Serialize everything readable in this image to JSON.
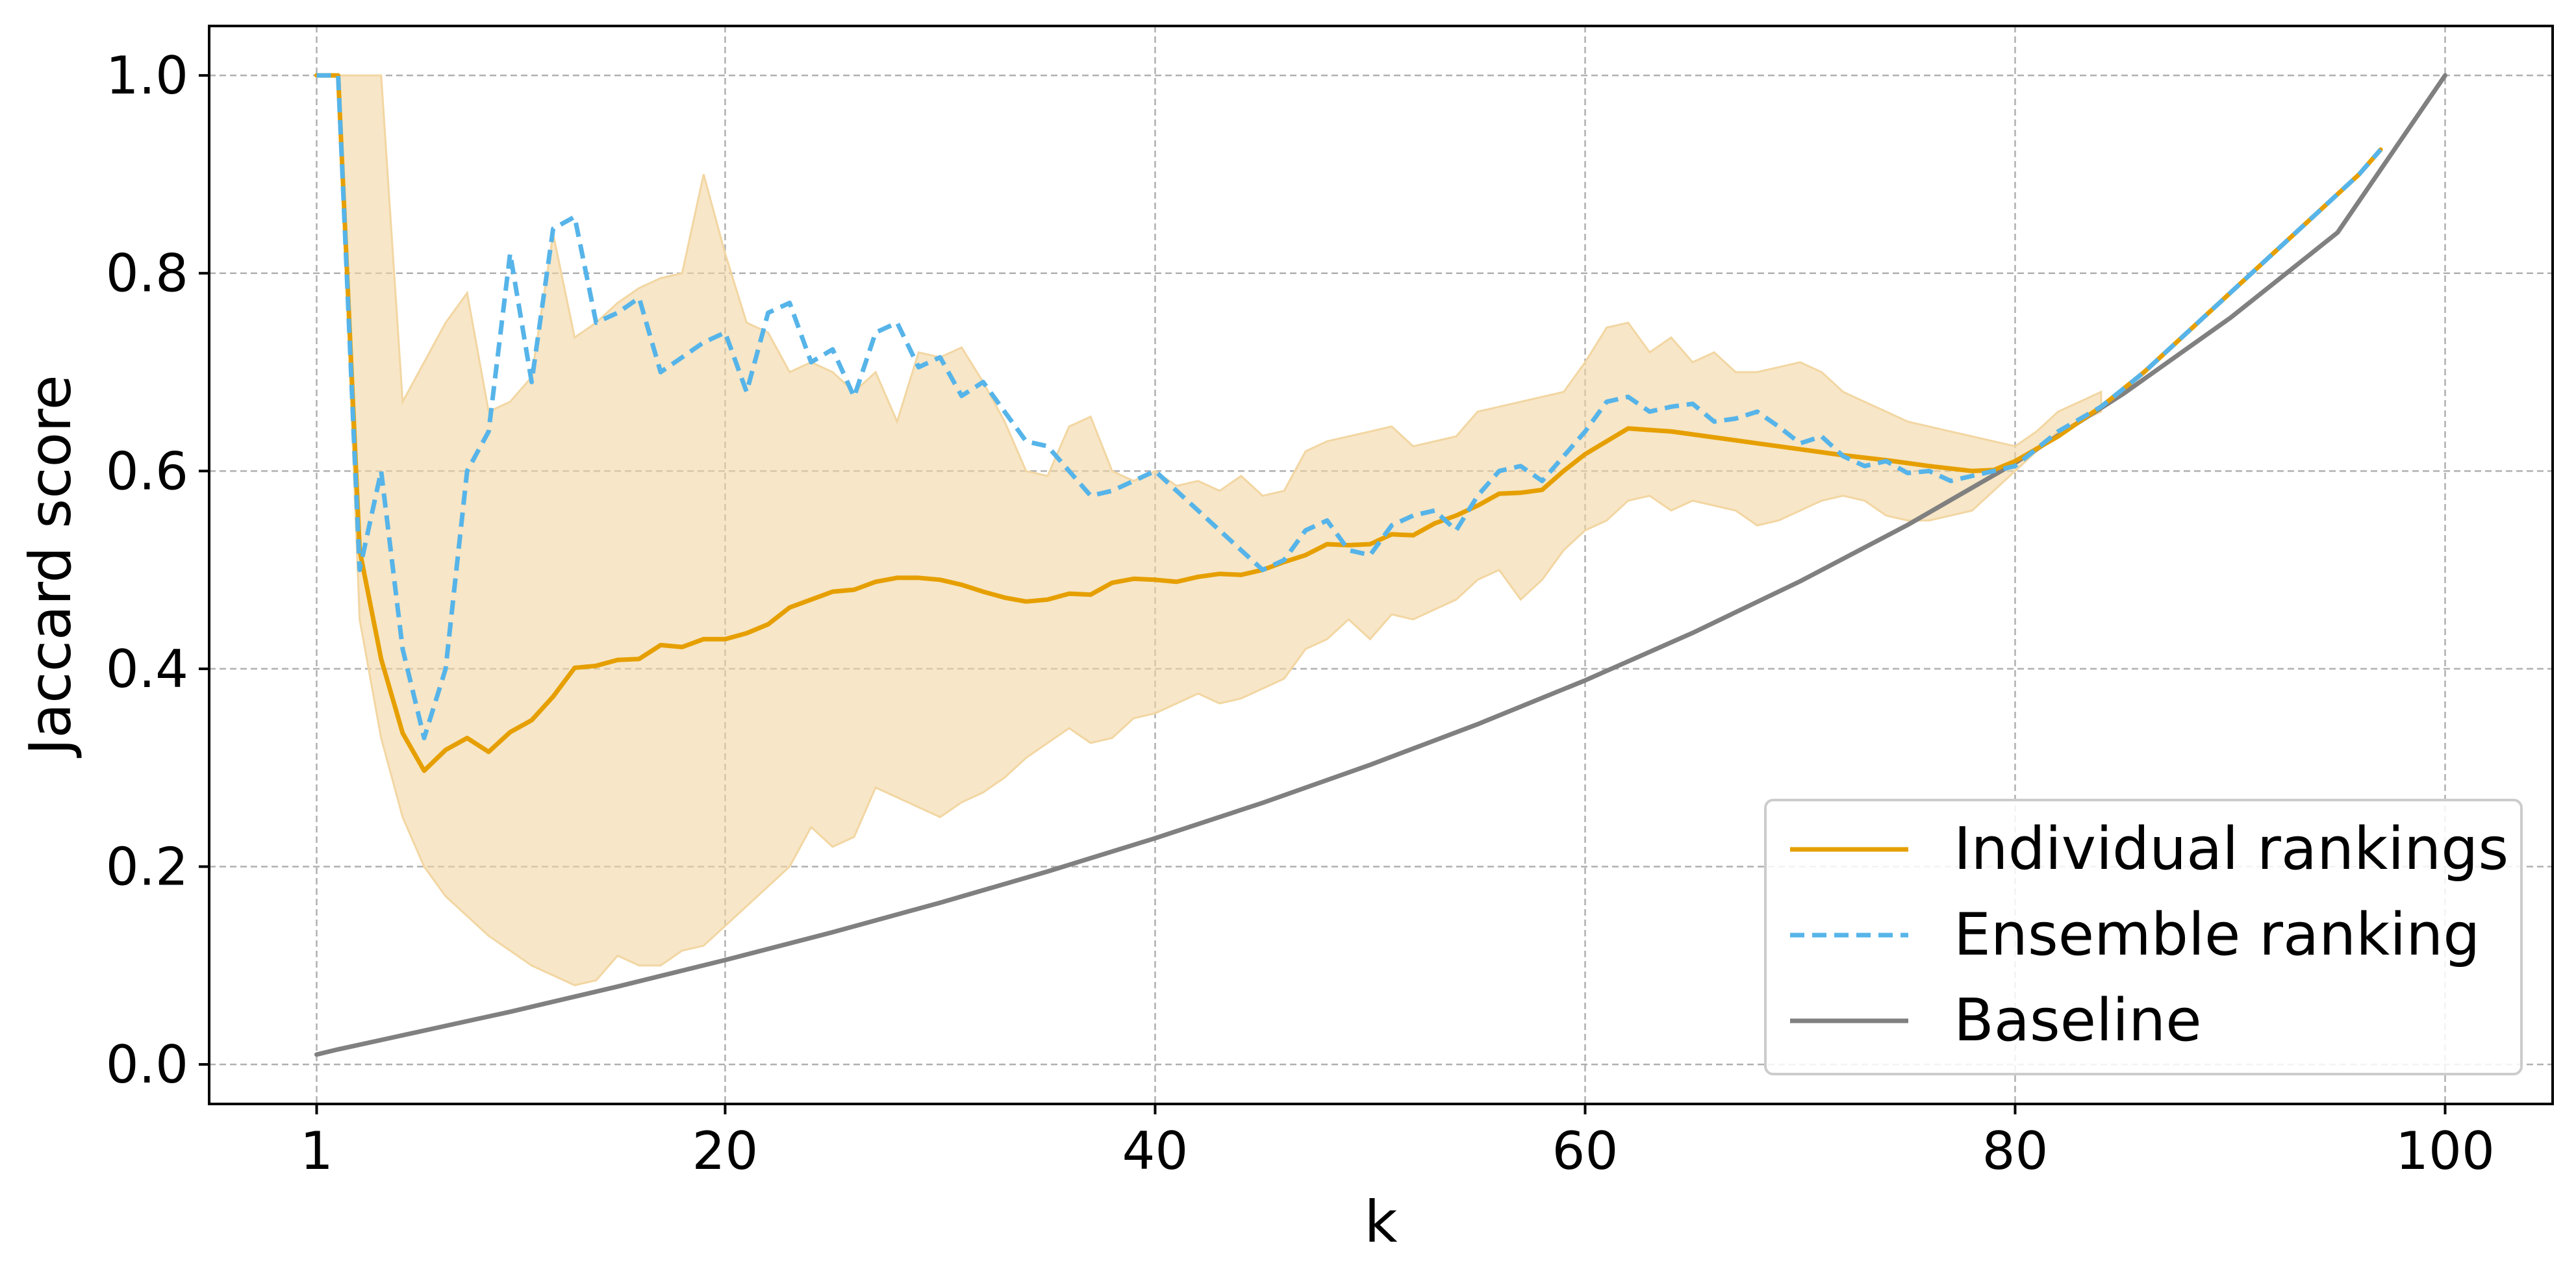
{
  "chart_data": {
    "type": "line",
    "xlabel": "k",
    "ylabel": "Jaccard score",
    "xlim": [
      -4,
      105
    ],
    "ylim": [
      -0.04,
      1.05
    ],
    "x_ticks": [
      1,
      20,
      40,
      60,
      80,
      100
    ],
    "x_tick_labels": [
      "1",
      "20",
      "40",
      "60",
      "80",
      "100"
    ],
    "y_ticks": [
      0.0,
      0.2,
      0.4,
      0.6,
      0.8,
      1.0
    ],
    "y_tick_labels": [
      "0.0",
      "0.2",
      "0.4",
      "0.6",
      "0.8",
      "1.0"
    ],
    "grid": true,
    "legend_position": "lower-right",
    "series": [
      {
        "name": "Individual rankings",
        "style": "solid",
        "color": "#E69F00",
        "x": [
          1,
          2,
          3,
          4,
          5,
          6,
          7,
          8,
          9,
          10,
          11,
          12,
          13,
          14,
          15,
          16,
          17,
          18,
          19,
          20,
          21,
          22,
          23,
          24,
          25,
          26,
          27,
          28,
          29,
          30,
          31,
          32,
          33,
          34,
          35,
          36,
          37,
          38,
          39,
          40,
          41,
          42,
          43,
          44,
          45,
          46,
          47,
          48,
          49,
          50,
          51,
          52,
          53,
          54,
          55,
          56,
          57,
          58,
          59,
          60,
          62,
          64,
          66,
          68,
          70,
          72,
          74,
          76,
          78,
          79,
          80,
          82,
          84,
          86,
          88,
          90,
          92,
          94,
          96,
          97
        ],
        "y": [
          1.0,
          1.0,
          0.52,
          0.41,
          0.335,
          0.297,
          0.318,
          0.33,
          0.316,
          0.336,
          0.348,
          0.372,
          0.401,
          0.403,
          0.409,
          0.41,
          0.424,
          0.422,
          0.43,
          0.43,
          0.436,
          0.445,
          0.462,
          0.47,
          0.478,
          0.48,
          0.488,
          0.492,
          0.492,
          0.49,
          0.485,
          0.478,
          0.472,
          0.468,
          0.47,
          0.476,
          0.475,
          0.487,
          0.491,
          0.49,
          0.488,
          0.493,
          0.496,
          0.495,
          0.5,
          0.508,
          0.515,
          0.526,
          0.525,
          0.526,
          0.536,
          0.535,
          0.547,
          0.555,
          0.565,
          0.577,
          0.578,
          0.581,
          0.6,
          0.617,
          0.643,
          0.64,
          0.634,
          0.628,
          0.622,
          0.616,
          0.611,
          0.605,
          0.6,
          0.601,
          0.61,
          0.635,
          0.665,
          0.7,
          0.74,
          0.78,
          0.82,
          0.86,
          0.9,
          0.925
        ]
      },
      {
        "name": "Ensemble ranking",
        "style": "dashed",
        "color": "#56B4E9",
        "x": [
          1,
          2,
          3,
          4,
          5,
          6,
          7,
          8,
          9,
          10,
          11,
          12,
          13,
          14,
          15,
          16,
          17,
          18,
          19,
          20,
          21,
          22,
          23,
          24,
          25,
          26,
          27,
          28,
          29,
          30,
          31,
          32,
          33,
          34,
          35,
          36,
          37,
          38,
          39,
          40,
          41,
          42,
          43,
          44,
          45,
          46,
          47,
          48,
          49,
          50,
          51,
          52,
          53,
          54,
          55,
          56,
          57,
          58,
          59,
          60,
          61,
          62,
          63,
          64,
          65,
          66,
          67,
          68,
          69,
          70,
          71,
          72,
          73,
          74,
          75,
          76,
          77,
          78,
          79,
          80,
          82,
          84,
          86,
          88,
          90,
          92,
          94,
          96,
          97
        ],
        "y": [
          1.0,
          1.0,
          0.5,
          0.6,
          0.42,
          0.33,
          0.4,
          0.6,
          0.64,
          0.82,
          0.69,
          0.845,
          0.857,
          0.75,
          0.76,
          0.775,
          0.7,
          0.715,
          0.73,
          0.74,
          0.68,
          0.76,
          0.77,
          0.71,
          0.723,
          0.675,
          0.74,
          0.75,
          0.705,
          0.715,
          0.676,
          0.69,
          0.66,
          0.63,
          0.625,
          0.6,
          0.575,
          0.58,
          0.59,
          0.6,
          0.58,
          0.56,
          0.54,
          0.52,
          0.5,
          0.51,
          0.54,
          0.55,
          0.52,
          0.515,
          0.545,
          0.555,
          0.56,
          0.54,
          0.575,
          0.6,
          0.605,
          0.59,
          0.615,
          0.64,
          0.67,
          0.675,
          0.66,
          0.665,
          0.668,
          0.65,
          0.653,
          0.66,
          0.645,
          0.628,
          0.635,
          0.615,
          0.605,
          0.61,
          0.598,
          0.6,
          0.59,
          0.595,
          0.6,
          0.605,
          0.64,
          0.665,
          0.7,
          0.74,
          0.78,
          0.82,
          0.86,
          0.9,
          0.925
        ]
      },
      {
        "name": "Baseline",
        "style": "solid",
        "color": "#808080",
        "x": [
          1,
          2,
          4,
          6,
          8,
          10,
          15,
          20,
          25,
          30,
          35,
          40,
          45,
          50,
          55,
          60,
          65,
          70,
          75,
          80,
          85,
          90,
          95,
          100
        ],
        "y": [
          0.01,
          0.0152,
          0.0247,
          0.0342,
          0.0437,
          0.0532,
          0.0787,
          0.1055,
          0.1337,
          0.1635,
          0.1951,
          0.2287,
          0.2645,
          0.3029,
          0.344,
          0.3883,
          0.4363,
          0.4885,
          0.5455,
          0.6082,
          0.6776,
          0.7547,
          0.8412,
          1.0
        ]
      }
    ],
    "band": {
      "series": "Individual rankings",
      "color": "#F2D6A2",
      "x": [
        1,
        2,
        3,
        4,
        5,
        6,
        7,
        8,
        9,
        10,
        11,
        12,
        13,
        14,
        15,
        16,
        17,
        18,
        19,
        20,
        21,
        22,
        23,
        24,
        25,
        26,
        27,
        28,
        29,
        30,
        31,
        32,
        33,
        34,
        35,
        36,
        37,
        38,
        39,
        40,
        41,
        42,
        43,
        44,
        45,
        46,
        47,
        48,
        49,
        50,
        51,
        52,
        53,
        54,
        55,
        56,
        57,
        58,
        59,
        60,
        61,
        62,
        63,
        64,
        65,
        66,
        67,
        68,
        69,
        70,
        71,
        72,
        73,
        74,
        75,
        76,
        77,
        78,
        79,
        80,
        81,
        82,
        83,
        84
      ],
      "upper": [
        1.0,
        1.0,
        1.0,
        1.0,
        0.67,
        0.71,
        0.75,
        0.78,
        0.66,
        0.67,
        0.695,
        0.84,
        0.735,
        0.75,
        0.77,
        0.785,
        0.795,
        0.8,
        0.9,
        0.82,
        0.75,
        0.74,
        0.7,
        0.71,
        0.7,
        0.68,
        0.7,
        0.65,
        0.72,
        0.715,
        0.725,
        0.69,
        0.65,
        0.6,
        0.595,
        0.645,
        0.655,
        0.6,
        0.59,
        0.6,
        0.585,
        0.59,
        0.58,
        0.595,
        0.575,
        0.58,
        0.62,
        0.63,
        0.635,
        0.64,
        0.645,
        0.625,
        0.63,
        0.635,
        0.66,
        0.665,
        0.67,
        0.675,
        0.68,
        0.71,
        0.745,
        0.75,
        0.72,
        0.735,
        0.71,
        0.72,
        0.7,
        0.7,
        0.705,
        0.71,
        0.7,
        0.68,
        0.67,
        0.66,
        0.65,
        0.645,
        0.64,
        0.635,
        0.63,
        0.625,
        0.64,
        0.66,
        0.67,
        0.68
      ],
      "lower": [
        1.0,
        1.0,
        0.45,
        0.33,
        0.25,
        0.2,
        0.17,
        0.15,
        0.13,
        0.115,
        0.1,
        0.09,
        0.08,
        0.085,
        0.11,
        0.1,
        0.1,
        0.115,
        0.12,
        0.14,
        0.16,
        0.18,
        0.2,
        0.24,
        0.22,
        0.23,
        0.28,
        0.27,
        0.26,
        0.25,
        0.265,
        0.275,
        0.29,
        0.31,
        0.325,
        0.34,
        0.325,
        0.33,
        0.35,
        0.355,
        0.365,
        0.375,
        0.365,
        0.37,
        0.38,
        0.39,
        0.42,
        0.43,
        0.45,
        0.43,
        0.455,
        0.45,
        0.46,
        0.47,
        0.49,
        0.5,
        0.47,
        0.49,
        0.52,
        0.54,
        0.55,
        0.57,
        0.575,
        0.56,
        0.57,
        0.565,
        0.56,
        0.545,
        0.55,
        0.56,
        0.57,
        0.575,
        0.57,
        0.555,
        0.55,
        0.55,
        0.555,
        0.56,
        0.58,
        0.6,
        0.62,
        0.64,
        0.65,
        0.66
      ]
    }
  }
}
